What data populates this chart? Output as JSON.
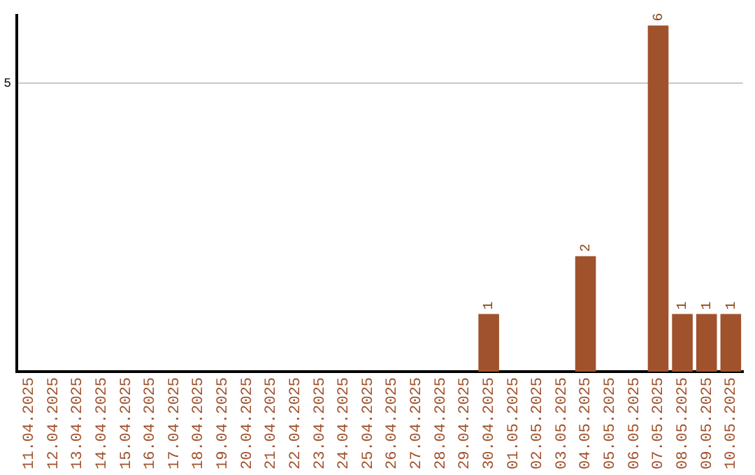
{
  "chart_data": {
    "type": "bar",
    "categories": [
      "11.04.2025",
      "12.04.2025",
      "13.04.2025",
      "14.04.2025",
      "15.04.2025",
      "16.04.2025",
      "17.04.2025",
      "18.04.2025",
      "19.04.2025",
      "20.04.2025",
      "21.04.2025",
      "22.04.2025",
      "23.04.2025",
      "24.04.2025",
      "25.04.2025",
      "26.04.2025",
      "27.04.2025",
      "28.04.2025",
      "29.04.2025",
      "30.04.2025",
      "01.05.2025",
      "02.05.2025",
      "03.05.2025",
      "04.05.2025",
      "05.05.2025",
      "06.05.2025",
      "07.05.2025",
      "08.05.2025",
      "09.05.2025",
      "10.05.2025"
    ],
    "values": [
      null,
      null,
      null,
      null,
      null,
      null,
      null,
      null,
      null,
      null,
      null,
      null,
      null,
      null,
      null,
      null,
      null,
      null,
      null,
      1,
      null,
      null,
      null,
      2,
      null,
      null,
      6,
      1,
      1,
      1
    ],
    "data_labels": true,
    "color": "#a0522d",
    "ylim": [
      0,
      6.2
    ],
    "ref_lines": [
      {
        "axis": "y",
        "value": 5,
        "label": "5",
        "color": "#c8c8c8"
      }
    ],
    "legend": false
  }
}
